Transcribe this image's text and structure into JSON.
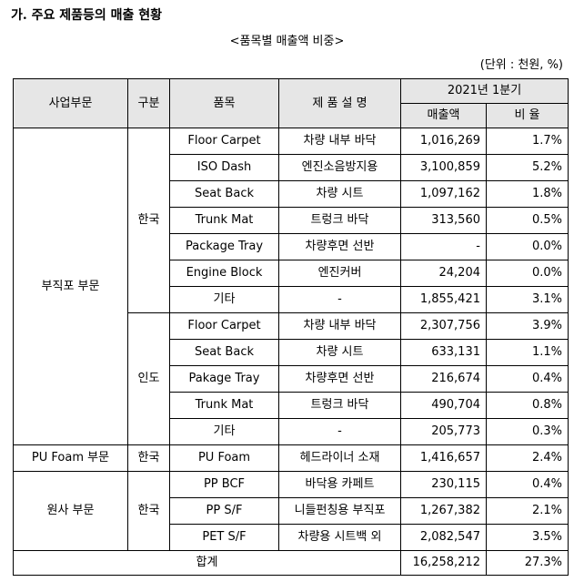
{
  "heading": "가. 주요 제품등의 매출 현황",
  "subtitle": "<품목별 매출액 비중>",
  "unit": "(단위 : 천원, %)",
  "headers": {
    "division": "사업부문",
    "region": "구분",
    "item": "품목",
    "description": "제 품 설 명",
    "period": "2021년 1분기",
    "sales": "매출액",
    "ratio": "비 율"
  },
  "groups": [
    {
      "division": "부직포 부문",
      "subgroups": [
        {
          "region": "한국",
          "rows": [
            {
              "item": "Floor Carpet",
              "desc": "차량 내부 바닥",
              "sales": "1,016,269",
              "ratio": "1.7%"
            },
            {
              "item": "ISO Dash",
              "desc": "엔진소음방지용",
              "sales": "3,100,859",
              "ratio": "5.2%"
            },
            {
              "item": "Seat Back",
              "desc": "차량 시트",
              "sales": "1,097,162",
              "ratio": "1.8%"
            },
            {
              "item": "Trunk Mat",
              "desc": "트렁크 바닥",
              "sales": "313,560",
              "ratio": "0.5%"
            },
            {
              "item": "Package Tray",
              "desc": "차량후면 선반",
              "sales": "-",
              "ratio": "0.0%"
            },
            {
              "item": "Engine Block",
              "desc": "엔진커버",
              "sales": "24,204",
              "ratio": "0.0%"
            },
            {
              "item": "기타",
              "desc": "-",
              "sales": "1,855,421",
              "ratio": "3.1%"
            }
          ]
        },
        {
          "region": "인도",
          "rows": [
            {
              "item": "Floor Carpet",
              "desc": "차량 내부 바닥",
              "sales": "2,307,756",
              "ratio": "3.9%"
            },
            {
              "item": "Seat Back",
              "desc": "차량 시트",
              "sales": "633,131",
              "ratio": "1.1%"
            },
            {
              "item": "Pakage Tray",
              "desc": "차량후면 선반",
              "sales": "216,674",
              "ratio": "0.4%"
            },
            {
              "item": "Trunk Mat",
              "desc": "트렁크 바닥",
              "sales": "490,704",
              "ratio": "0.8%"
            },
            {
              "item": "기타",
              "desc": "-",
              "sales": "205,773",
              "ratio": "0.3%"
            }
          ]
        }
      ]
    },
    {
      "division": "PU Foam 부문",
      "subgroups": [
        {
          "region": "한국",
          "rows": [
            {
              "item": "PU Foam",
              "desc": "헤드라이너 소재",
              "sales": "1,416,657",
              "ratio": "2.4%"
            }
          ]
        }
      ]
    },
    {
      "division": "원사 부문",
      "subgroups": [
        {
          "region": "한국",
          "rows": [
            {
              "item": "PP BCF",
              "desc": "바닥용 카페트",
              "sales": "230,115",
              "ratio": "0.4%"
            },
            {
              "item": "PP S/F",
              "desc": "니들펀칭용 부직포",
              "sales": "1,267,382",
              "ratio": "2.1%"
            },
            {
              "item": "PET S/F",
              "desc": "차량용 시트백 외",
              "sales": "2,082,547",
              "ratio": "3.5%"
            }
          ]
        }
      ]
    }
  ],
  "total": {
    "label": "합계",
    "sales": "16,258,212",
    "ratio": "27.3%"
  }
}
